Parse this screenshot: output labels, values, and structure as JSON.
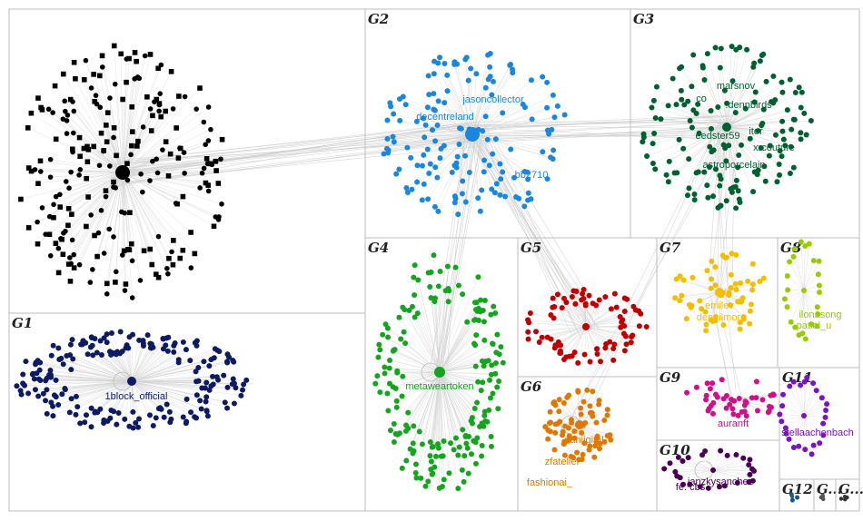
{
  "groups": [
    {
      "id": "g0",
      "label": "",
      "color": "#000000"
    },
    {
      "id": "g1",
      "label": "G1",
      "color": "#0d1b63"
    },
    {
      "id": "g2",
      "label": "G2",
      "color": "#1a87dc"
    },
    {
      "id": "g3",
      "label": "G3",
      "color": "#006030"
    },
    {
      "id": "g4",
      "label": "G4",
      "color": "#14a51e"
    },
    {
      "id": "g5",
      "label": "G5",
      "color": "#c00000"
    },
    {
      "id": "g6",
      "label": "G6",
      "color": "#e07800"
    },
    {
      "id": "g7",
      "label": "G7",
      "color": "#f5bd00"
    },
    {
      "id": "g8",
      "label": "G8",
      "color": "#96cc00"
    },
    {
      "id": "g9",
      "label": "G9",
      "color": "#d0108a"
    },
    {
      "id": "g10",
      "label": "G10",
      "color": "#4a0055"
    },
    {
      "id": "g11",
      "label": "G11",
      "color": "#7a12c8"
    },
    {
      "id": "g12",
      "label": "G12",
      "color": "#1a5a88"
    },
    {
      "id": "g13",
      "label": "G...",
      "color": "#555555"
    },
    {
      "id": "g14",
      "label": "G...",
      "color": "#333333"
    }
  ],
  "node_labels": {
    "g1": [
      "1block_official"
    ],
    "g2": [
      "jasoncollector",
      "decentreland",
      "bb2710"
    ],
    "g3": [
      "marsnov",
      "co ",
      ".dennbirds",
      "eedster59",
      "itor",
      "xrcouture",
      "astroporcelain"
    ],
    "g4": [
      "metaweartoken"
    ],
    "g6": [
      "daniigital",
      "zfatelier",
      "fashionai_"
    ],
    "g7": [
      "emilev",
      "dengilmore"
    ],
    "g8": [
      "ilonasong",
      "patial_u"
    ],
    "g9": [
      "auranft"
    ],
    "g10": [
      "fe. cbs",
      "janzkysanchez"
    ],
    "g11": [
      "stellaachenbach"
    ]
  }
}
